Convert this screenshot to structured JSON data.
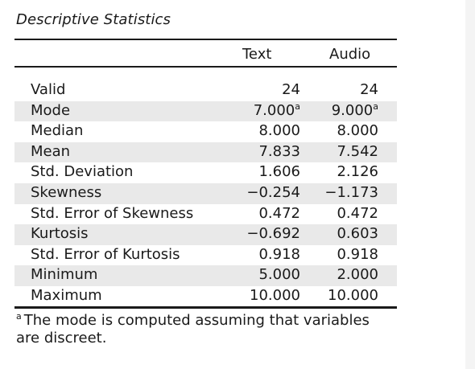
{
  "table": {
    "title": "Descriptive Statistics",
    "columns": [
      "Text",
      "Audio"
    ],
    "rows": [
      {
        "label": "Valid",
        "text": "24",
        "audio": "24",
        "text_sup": "",
        "audio_sup": ""
      },
      {
        "label": "Mode",
        "text": "7.000",
        "audio": "9.000",
        "text_sup": "a",
        "audio_sup": "a"
      },
      {
        "label": "Median",
        "text": "8.000",
        "audio": "8.000",
        "text_sup": "",
        "audio_sup": ""
      },
      {
        "label": "Mean",
        "text": "7.833",
        "audio": "7.542",
        "text_sup": "",
        "audio_sup": ""
      },
      {
        "label": "Std. Deviation",
        "text": "1.606",
        "audio": "2.126",
        "text_sup": "",
        "audio_sup": ""
      },
      {
        "label": "Skewness",
        "text": "−0.254",
        "audio": "−1.173",
        "text_sup": "",
        "audio_sup": ""
      },
      {
        "label": "Std. Error of Skewness",
        "text": "0.472",
        "audio": "0.472",
        "text_sup": "",
        "audio_sup": ""
      },
      {
        "label": "Kurtosis",
        "text": "−0.692",
        "audio": "0.603",
        "text_sup": "",
        "audio_sup": ""
      },
      {
        "label": "Std. Error of Kurtosis",
        "text": "0.918",
        "audio": "0.918",
        "text_sup": "",
        "audio_sup": ""
      },
      {
        "label": "Minimum",
        "text": "5.000",
        "audio": "2.000",
        "text_sup": "",
        "audio_sup": ""
      },
      {
        "label": "Maximum",
        "text": "10.000",
        "audio": "10.000",
        "text_sup": "",
        "audio_sup": ""
      }
    ],
    "footnote": {
      "marker": "a",
      "text": "The mode is computed assuming that variables are discreet."
    }
  },
  "colors": {
    "shade": "#e9e9e9",
    "rule": "#1a1a1a"
  }
}
